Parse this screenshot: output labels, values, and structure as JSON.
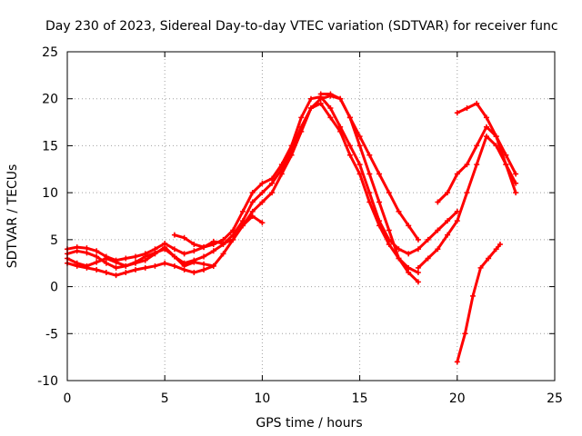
{
  "chart_data": {
    "type": "line",
    "title": "Day 230 of 2023, Sidereal Day-to-day VTEC variation (SDTVAR) for receiver func",
    "xlabel": "GPS time / hours",
    "ylabel": "SDTVAR / TECUs",
    "xlim": [
      0,
      25
    ],
    "ylim": [
      -10,
      25
    ],
    "xticks": [
      0,
      5,
      10,
      15,
      20,
      25
    ],
    "yticks": [
      -10,
      -5,
      0,
      5,
      10,
      15,
      20,
      25
    ],
    "xtick_labels": [
      "0",
      "5",
      "10",
      "15",
      "20",
      "25"
    ],
    "ytick_labels": [
      "-10",
      "-5",
      "0",
      "5",
      "10",
      "15",
      "20",
      "25"
    ],
    "grid": true,
    "series_color": "#ff0000",
    "series": [
      {
        "name": "trace-1",
        "x": [
          0,
          0.5,
          1,
          1.5,
          2,
          2.5,
          3,
          3.5,
          4,
          4.5,
          5,
          5.5,
          6,
          6.5,
          7,
          7.5,
          8,
          8.5,
          9,
          9.5,
          10,
          10.5,
          11,
          11.5,
          12,
          12.5,
          13,
          13.5,
          14,
          14.5,
          15,
          15.5,
          16,
          16.5,
          17,
          17.5,
          18,
          18.5,
          19,
          19.5,
          20
        ],
        "y": [
          4,
          4.2,
          4.1,
          3.8,
          3.2,
          2.8,
          3,
          3.2,
          3.5,
          4,
          4.6,
          4,
          3.5,
          3.8,
          4.2,
          4.5,
          5,
          6,
          8,
          10,
          11,
          11.5,
          13,
          15,
          18,
          20,
          20.2,
          19,
          17,
          15,
          13,
          10,
          7,
          5,
          4,
          3.5,
          4,
          5,
          6,
          7,
          8
        ]
      },
      {
        "name": "trace-2",
        "x": [
          0,
          0.5,
          1,
          1.5,
          2,
          2.5,
          3,
          3.5,
          4,
          4.5,
          5,
          5.5,
          6,
          6.5,
          7,
          7.5,
          8,
          8.5,
          9,
          9.5,
          10,
          10.5,
          11,
          11.5,
          12,
          12.5,
          13,
          13.5,
          14,
          14.5,
          15,
          15.5,
          16,
          16.5,
          17,
          17.5,
          18
        ],
        "y": [
          3.5,
          3.8,
          3.6,
          3.2,
          2.5,
          2,
          2.2,
          2.5,
          2.8,
          3.5,
          4.2,
          3.2,
          2.5,
          2.8,
          3.2,
          3.8,
          4.5,
          5.5,
          7,
          9,
          10,
          11,
          12.5,
          14.5,
          17,
          19,
          19.5,
          18,
          16.5,
          14,
          12,
          9,
          6.5,
          4.5,
          3,
          2,
          1.5
        ]
      },
      {
        "name": "trace-3",
        "x": [
          0,
          0.5,
          1,
          1.5,
          2,
          2.5,
          3,
          3.5,
          4,
          4.5,
          5,
          5.5,
          6,
          6.5,
          7,
          7.5,
          8,
          8.5,
          9,
          9.5,
          10,
          10.5,
          11,
          11.5,
          12,
          12.5,
          13,
          13.5,
          14,
          14.5,
          15,
          15.5,
          16,
          16.5,
          17,
          17.5,
          18
        ],
        "y": [
          2.5,
          2.2,
          2,
          1.8,
          1.5,
          1.2,
          1.5,
          1.8,
          2,
          2.2,
          2.5,
          2.2,
          1.8,
          1.5,
          1.8,
          2.2,
          3.5,
          5,
          6.5,
          8,
          9,
          10,
          12,
          14,
          16.5,
          19,
          20,
          20.3,
          20,
          18,
          15,
          12,
          9,
          6,
          3,
          1.5,
          0.5
        ]
      },
      {
        "name": "trace-4",
        "x": [
          0,
          0.5,
          1,
          1.5,
          2,
          2.5,
          3,
          3.5,
          4,
          4.5,
          5,
          5.5,
          6,
          6.5,
          7,
          7.5
        ],
        "y": [
          3,
          2.5,
          2.2,
          2.6,
          3,
          2.6,
          2.2,
          2.6,
          3.2,
          3.6,
          4,
          3.2,
          2.2,
          2.6,
          2.4,
          2.2
        ]
      },
      {
        "name": "trace-5",
        "x": [
          5.5,
          6,
          6.5,
          7,
          7.5,
          8,
          8.5,
          9,
          9.5,
          10
        ],
        "y": [
          5.5,
          5.2,
          4.5,
          4.2,
          4.8,
          4.6,
          5,
          6.5,
          7.5,
          6.8
        ]
      },
      {
        "name": "trace-6",
        "x": [
          13,
          13.5,
          14,
          14.5,
          15,
          15.5,
          16,
          16.5,
          17,
          17.5,
          18
        ],
        "y": [
          20.5,
          20.5,
          20,
          18,
          16,
          14,
          12,
          10,
          8,
          6.5,
          5
        ]
      },
      {
        "name": "trace-7",
        "x": [
          18,
          18.5,
          19,
          19.5,
          20,
          20.5,
          21,
          21.5,
          22,
          22.5,
          23
        ],
        "y": [
          2,
          3,
          4,
          5.5,
          7,
          10,
          13,
          16,
          15,
          13,
          11
        ]
      },
      {
        "name": "trace-8",
        "x": [
          19,
          19.5,
          20,
          20.5,
          21,
          21.5,
          22,
          22.5,
          23
        ],
        "y": [
          9,
          10,
          12,
          13,
          15,
          17,
          16,
          14,
          12
        ]
      },
      {
        "name": "trace-9",
        "x": [
          20,
          20.5,
          21,
          21.5,
          22,
          22.5,
          23
        ],
        "y": [
          18.5,
          19,
          19.5,
          18,
          16,
          13,
          10
        ]
      },
      {
        "name": "trace-10",
        "x": [
          20,
          20.4,
          20.8,
          21.2,
          21.6,
          22,
          22.2
        ],
        "y": [
          -8,
          -5,
          -1,
          2,
          3,
          4,
          4.5
        ]
      }
    ]
  }
}
